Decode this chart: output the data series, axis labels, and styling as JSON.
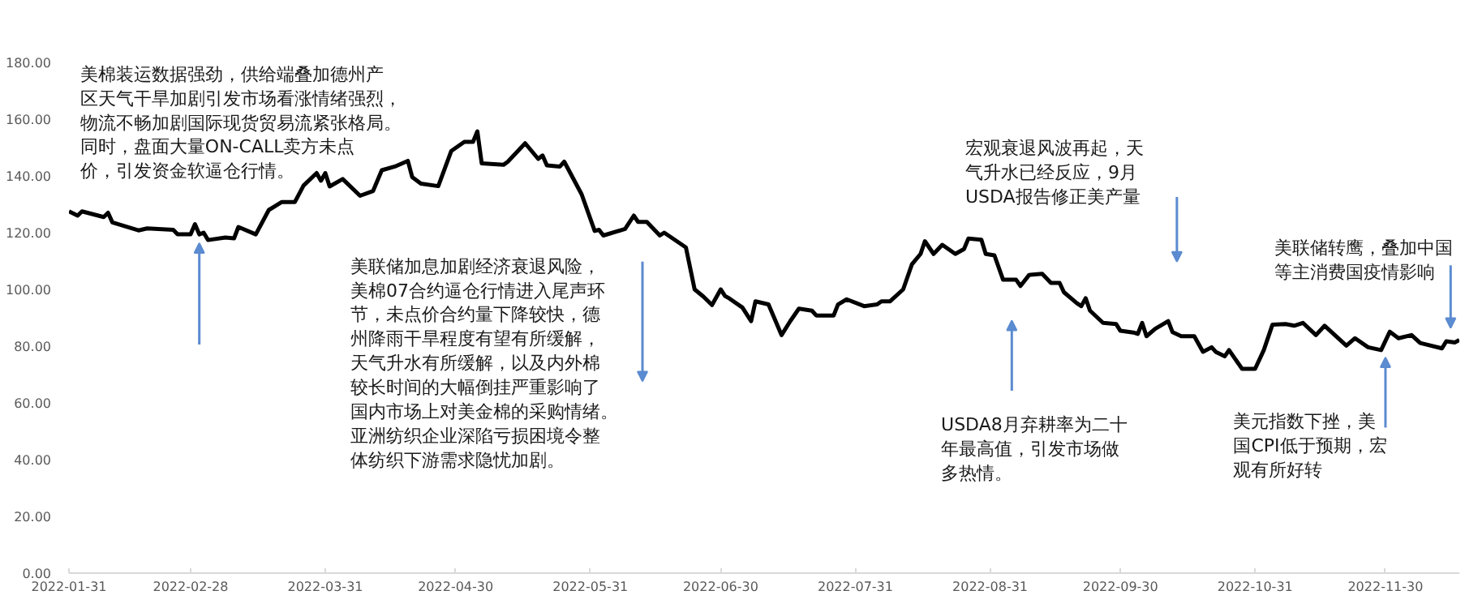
{
  "chart_data": {
    "type": "line",
    "x": [
      "2022-01-31",
      "2022-02-02",
      "2022-02-03",
      "2022-02-08",
      "2022-02-09",
      "2022-02-10",
      "2022-02-16",
      "2022-02-18",
      "2022-02-24",
      "2022-02-25",
      "2022-02-28",
      "2022-03-01",
      "2022-03-02",
      "2022-03-03",
      "2022-03-04",
      "2022-03-08",
      "2022-03-10",
      "2022-03-11",
      "2022-03-15",
      "2022-03-18",
      "2022-03-21",
      "2022-03-24",
      "2022-03-26",
      "2022-03-29",
      "2022-03-30",
      "2022-03-31",
      "2022-04-01",
      "2022-04-04",
      "2022-04-08",
      "2022-04-11",
      "2022-04-13",
      "2022-04-16",
      "2022-04-19",
      "2022-04-20",
      "2022-04-22",
      "2022-04-26",
      "2022-04-29",
      "2022-05-02",
      "2022-05-04",
      "2022-05-05",
      "2022-05-06",
      "2022-05-11",
      "2022-05-12",
      "2022-05-16",
      "2022-05-19",
      "2022-05-20",
      "2022-05-21",
      "2022-05-24",
      "2022-05-25",
      "2022-05-29",
      "2022-06-01",
      "2022-06-02",
      "2022-06-03",
      "2022-06-08",
      "2022-06-10",
      "2022-06-11",
      "2022-06-13",
      "2022-06-16",
      "2022-06-17",
      "2022-06-22",
      "2022-06-24",
      "2022-06-26",
      "2022-06-28",
      "2022-06-30",
      "2022-07-01",
      "2022-07-02",
      "2022-07-05",
      "2022-07-07",
      "2022-07-08",
      "2022-07-11",
      "2022-07-14",
      "2022-07-16",
      "2022-07-18",
      "2022-07-21",
      "2022-07-22",
      "2022-07-26",
      "2022-07-27",
      "2022-07-29",
      "2022-08-02",
      "2022-08-05",
      "2022-08-06",
      "2022-08-08",
      "2022-08-11",
      "2022-08-13",
      "2022-08-15",
      "2022-08-16",
      "2022-08-18",
      "2022-08-20",
      "2022-08-23",
      "2022-08-25",
      "2022-08-26",
      "2022-08-29",
      "2022-08-30",
      "2022-09-01",
      "2022-09-03",
      "2022-09-06",
      "2022-09-07",
      "2022-09-09",
      "2022-09-12",
      "2022-09-14",
      "2022-09-16",
      "2022-09-17",
      "2022-09-20",
      "2022-09-21",
      "2022-09-22",
      "2022-09-23",
      "2022-09-26",
      "2022-09-29",
      "2022-09-30",
      "2022-10-03",
      "2022-10-04",
      "2022-10-05",
      "2022-10-06",
      "2022-10-08",
      "2022-10-11",
      "2022-10-12",
      "2022-10-14",
      "2022-10-17",
      "2022-10-19",
      "2022-10-21",
      "2022-10-22",
      "2022-10-24",
      "2022-10-25",
      "2022-10-28",
      "2022-10-31",
      "2022-11-02",
      "2022-11-04",
      "2022-11-07",
      "2022-11-09",
      "2022-11-11",
      "2022-11-14",
      "2022-11-16",
      "2022-11-21",
      "2022-11-23",
      "2022-11-26",
      "2022-11-29",
      "2022-12-01",
      "2022-12-03",
      "2022-12-06",
      "2022-12-08",
      "2022-12-13",
      "2022-12-14",
      "2022-12-16",
      "2022-12-17"
    ],
    "series": [
      {
        "color": "#000000",
        "values": [
          127.5,
          126,
          127.5,
          125.5,
          127,
          123.6,
          120.8,
          121.5,
          121,
          119.4,
          119.4,
          123,
          119.4,
          120,
          117.4,
          118.3,
          118,
          122,
          119.4,
          128,
          130.8,
          130.8,
          136.6,
          141,
          138.3,
          141,
          136.3,
          138.9,
          133,
          134.7,
          142,
          143.3,
          145.3,
          139.6,
          137.3,
          136.4,
          148.8,
          152,
          152,
          155.7,
          144.4,
          143.9,
          145,
          151.5,
          146,
          147.2,
          143.7,
          143.3,
          145,
          133.5,
          120.6,
          121,
          119,
          121.3,
          126,
          123.8,
          123.8,
          119,
          120,
          114.8,
          100,
          97.5,
          94.5,
          100,
          97.7,
          96.8,
          93.6,
          88.8,
          95.8,
          94.7,
          83.9,
          88.8,
          93.2,
          92.5,
          90.8,
          90.8,
          94.7,
          96.5,
          94.1,
          94.7,
          95.8,
          95.8,
          100,
          108.8,
          112.5,
          117,
          112.5,
          115.7,
          112.5,
          114.2,
          117.9,
          117.5,
          112.5,
          112,
          103.4,
          103.4,
          101.2,
          105.1,
          105.5,
          102.3,
          102.3,
          99,
          95.1,
          94.1,
          96.9,
          92.5,
          88.2,
          87.8,
          85.4,
          84.8,
          84.3,
          88.2,
          83.5,
          86.1,
          88.8,
          84.9,
          83.5,
          83.5,
          78,
          79.6,
          77.9,
          76.4,
          78.6,
          72,
          72,
          78.6,
          87.6,
          87.8,
          87.2,
          88.2,
          83.9,
          87.2,
          80.2,
          82.8,
          79.6,
          78.6,
          85.1,
          82.8,
          83.9,
          81.1,
          79.2,
          81.7,
          81.3,
          82.2
        ]
      }
    ],
    "xlim": [
      "2022-01-31",
      "2022-12-17"
    ],
    "xticks": [
      "2022-01-31",
      "2022-02-28",
      "2022-03-31",
      "2022-04-30",
      "2022-05-31",
      "2022-06-30",
      "2022-07-31",
      "2022-08-31",
      "2022-09-30",
      "2022-10-31",
      "2022-11-30"
    ],
    "ylim": [
      0,
      180
    ],
    "yticks": [
      {
        "value": 0,
        "label": "0.00"
      },
      {
        "value": 20,
        "label": "20.00"
      },
      {
        "value": 40,
        "label": "40.00"
      },
      {
        "value": 60,
        "label": "60.00"
      },
      {
        "value": 80,
        "label": "80.00"
      },
      {
        "value": 100,
        "label": "100.00"
      },
      {
        "value": 120,
        "label": "120.00"
      },
      {
        "value": 140,
        "label": "140.00"
      },
      {
        "value": 160,
        "label": "160.00"
      },
      {
        "value": 180,
        "label": "180.00"
      }
    ],
    "line_style": "solid",
    "annotations": [
      "美棉装运数据强劲，供给端叠加德州产区天气干旱加剧引发市场看涨情绪强烈，物流不畅加剧国际现货贸易流紧张格局。同时，盘面大量ON-CALL卖方未点价，引发资金软逼仓行情。",
      "美联储加息加剧经济衰退风险，美棉07合约逼仓行情进入尾声环节，未点价合约量下降较快，德州降雨干旱程度有望有所缓解，天气升水有所缓解，以及内外棉较长时间的大幅倒挂严重影响了国内市场上对美金棉的采购情绪。亚洲纺织企业深陷亏损困境令整体纺织下游需求隐忧加剧。",
      "宏观衰退风波再起，天气升水已经反应，9月USDA报告修正美产量",
      "USDA8月弃耕率为二十年最高值，引发市场做多热情。",
      "美元指数下挫，美国CPI低于预期，宏观有所好转",
      "美联储转鹰，叠加中国等主消费国疫情影响"
    ]
  }
}
